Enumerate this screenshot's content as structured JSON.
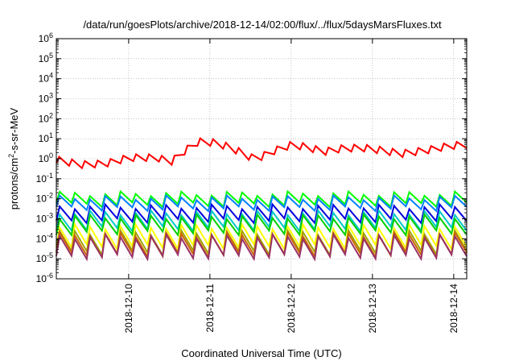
{
  "chart_data": {
    "type": "line",
    "title": "/data/run/goesPlots/archive/2018-12-14/02:00/flux/../flux/5daysMarsFluxes.txt",
    "xlabel": "Coordinated Universal Time (UTC)",
    "ylabel": "protons/cm²-s-sr-MeV",
    "y_scale": "log",
    "ylim_exp": [
      -6,
      6
    ],
    "y_tick_labels": [
      {
        "base": "10",
        "exp": "-6"
      },
      {
        "base": "10",
        "exp": "-5"
      },
      {
        "base": "10",
        "exp": "-4"
      },
      {
        "base": "10",
        "exp": "-3"
      },
      {
        "base": "10",
        "exp": "-2"
      },
      {
        "base": "10",
        "exp": "-1"
      },
      {
        "base": "10",
        "exp": "0"
      },
      {
        "base": "10",
        "exp": "1"
      },
      {
        "base": "10",
        "exp": "2"
      },
      {
        "base": "10",
        "exp": "3"
      },
      {
        "base": "10",
        "exp": "4"
      },
      {
        "base": "10",
        "exp": "5"
      },
      {
        "base": "10",
        "exp": "6"
      }
    ],
    "x_range_days": [
      0,
      5.05
    ],
    "x_tick_labels": [
      "2018-12-10",
      "2018-12-11",
      "2018-12-12",
      "2018-12-13",
      "2018-12-14"
    ],
    "x_tick_days": [
      0.89,
      1.89,
      2.89,
      3.89,
      4.89
    ],
    "grid": true,
    "legend": "none",
    "series": [
      {
        "color": "#ff0000",
        "pattern": "trend",
        "low_exp": -0.15,
        "jump": 0.35,
        "anchors": [
          [
            0,
            -0.1
          ],
          [
            0.3,
            -0.35
          ],
          [
            0.6,
            -0.3
          ],
          [
            0.9,
            0.0
          ],
          [
            1.25,
            0.0
          ],
          [
            1.4,
            -0.25
          ],
          [
            1.6,
            0.4
          ],
          [
            1.75,
            0.8
          ],
          [
            1.95,
            0.75
          ],
          [
            2.15,
            0.5
          ],
          [
            2.45,
            -0.1
          ],
          [
            2.65,
            0.3
          ],
          [
            2.9,
            0.65
          ],
          [
            3.05,
            0.55
          ],
          [
            3.3,
            0.3
          ],
          [
            3.5,
            0.45
          ],
          [
            3.75,
            0.5
          ],
          [
            3.95,
            0.4
          ],
          [
            4.25,
            0.2
          ],
          [
            4.6,
            0.4
          ],
          [
            4.85,
            0.6
          ],
          [
            5.05,
            0.65
          ]
        ],
        "teeth": 32
      },
      {
        "color": "#00ff00",
        "pattern": "saw",
        "low_exp": -2.3,
        "jump": 0.55,
        "teeth": 27
      },
      {
        "color": "#0080ff",
        "pattern": "saw",
        "low_exp": -2.5,
        "jump": 0.55,
        "teeth": 27
      },
      {
        "color": "#0000dd",
        "pattern": "saw",
        "low_exp": -3.1,
        "jump": 0.7,
        "teeth": 27
      },
      {
        "color": "#00c8c8",
        "pattern": "saw",
        "low_exp": -3.5,
        "jump": 0.8,
        "teeth": 27
      },
      {
        "color": "#00d000",
        "pattern": "saw",
        "low_exp": -3.7,
        "jump": 0.8,
        "teeth": 27
      },
      {
        "color": "#ffff00",
        "pattern": "saw",
        "low_exp": -4.4,
        "jump": 1.0,
        "teeth": 27
      },
      {
        "color": "#a0a000",
        "pattern": "saw",
        "low_exp": -4.7,
        "jump": 1.0,
        "teeth": 27
      },
      {
        "color": "#cc6600",
        "pattern": "saw",
        "low_exp": -4.8,
        "jump": 1.0,
        "teeth": 27
      },
      {
        "color": "#993366",
        "pattern": "saw",
        "low_exp": -4.9,
        "jump": 1.0,
        "teeth": 27
      }
    ]
  }
}
